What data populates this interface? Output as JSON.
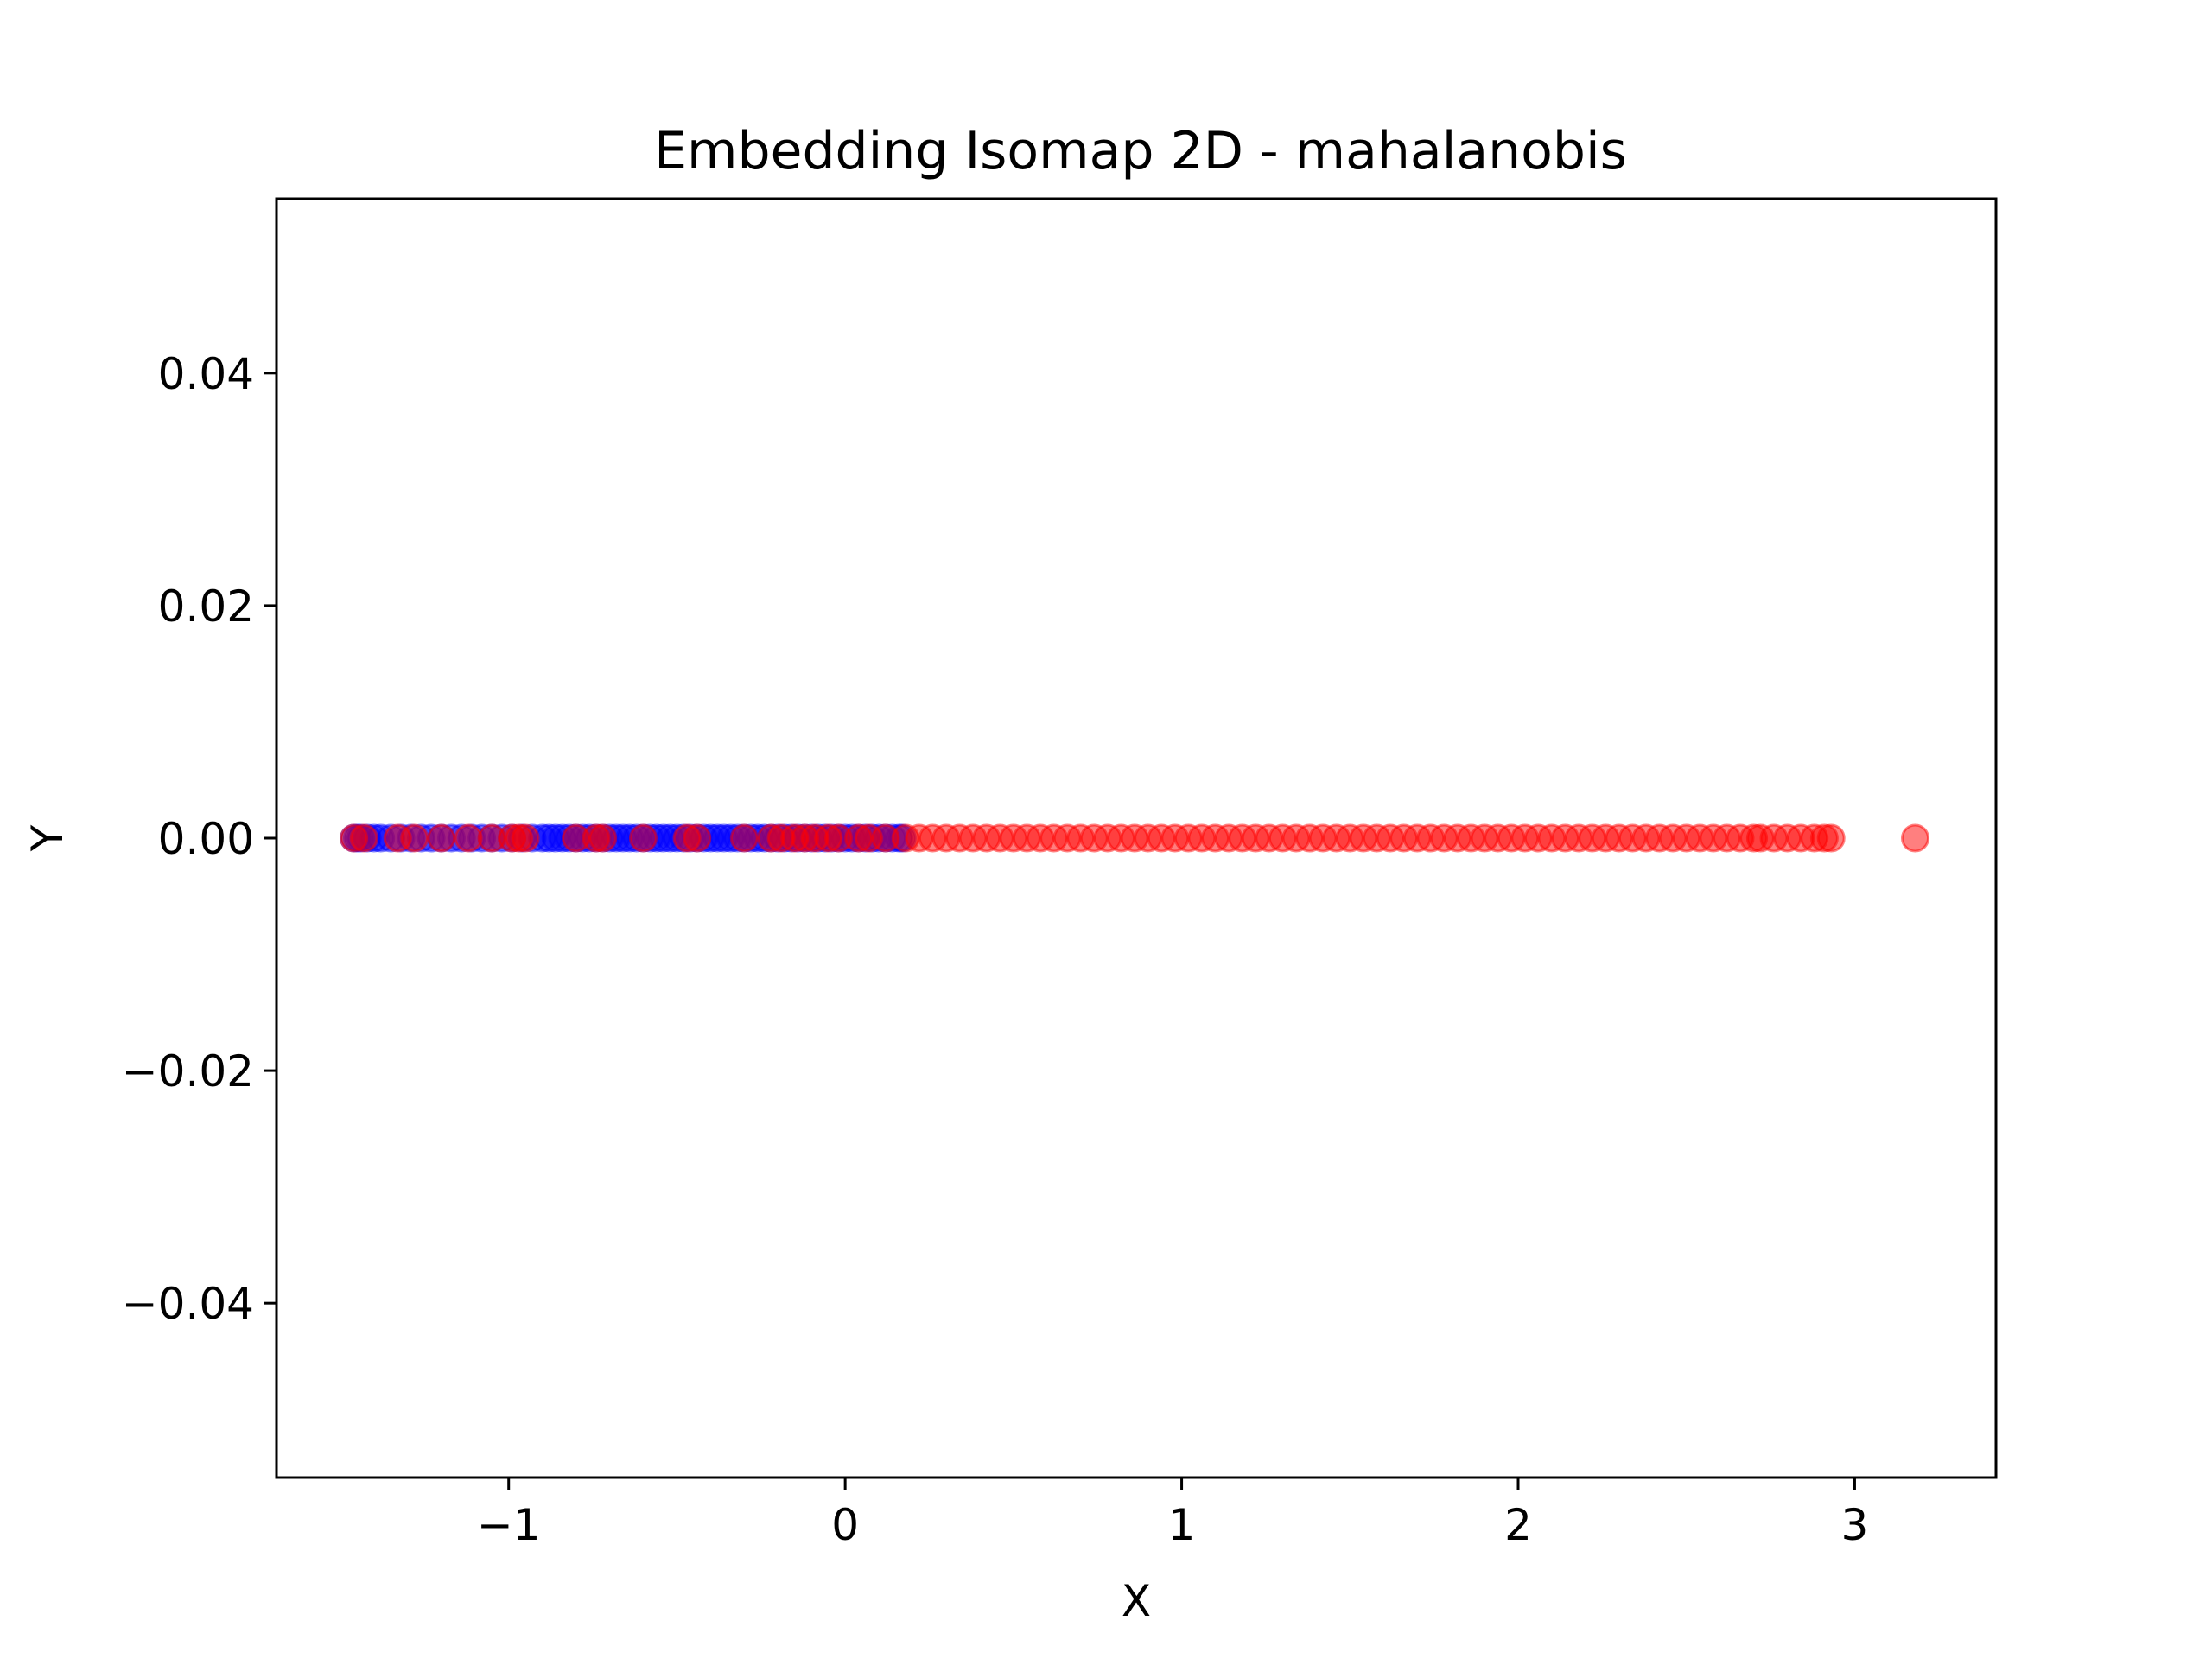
{
  "chart_data": {
    "type": "scatter",
    "title": "Embedding Isomap 2D - mahalanobis",
    "xlabel": "X",
    "ylabel": "Y",
    "xlim": [
      -1.69,
      3.42
    ],
    "ylim": [
      -0.055,
      0.055
    ],
    "xticks": [
      {
        "value": -1,
        "label": "−1"
      },
      {
        "value": 0,
        "label": "0"
      },
      {
        "value": 1,
        "label": "1"
      },
      {
        "value": 2,
        "label": "2"
      },
      {
        "value": 3,
        "label": "3"
      }
    ],
    "yticks": [
      {
        "value": 0.04,
        "label": "0.04"
      },
      {
        "value": 0.02,
        "label": "0.02"
      },
      {
        "value": 0.0,
        "label": "0.00"
      },
      {
        "value": -0.02,
        "label": "−0.02"
      },
      {
        "value": -0.04,
        "label": "−0.04"
      }
    ],
    "grid": false,
    "legend": false,
    "marker_alpha": 0.5,
    "series": [
      {
        "color": "#0000ff",
        "x": [
          -1.46,
          -1.45,
          -1.44,
          -1.42,
          -1.4,
          -1.38,
          -1.35,
          -1.32,
          -1.29,
          -1.26,
          -1.23,
          -1.2,
          -1.17,
          -1.14,
          -1.11,
          -1.08,
          -1.05,
          -1.02,
          -0.99,
          -0.96,
          -0.93,
          -0.9,
          -0.88,
          -0.86,
          -0.84,
          -0.82,
          -0.8,
          -0.78,
          -0.76,
          -0.74,
          -0.72,
          -0.7,
          -0.68,
          -0.66,
          -0.64,
          -0.62,
          -0.6,
          -0.58,
          -0.56,
          -0.54,
          -0.52,
          -0.5,
          -0.48,
          -0.46,
          -0.44,
          -0.42,
          -0.4,
          -0.38,
          -0.36,
          -0.34,
          -0.32,
          -0.3,
          -0.28,
          -0.26,
          -0.24,
          -0.22,
          -0.2,
          -0.18,
          -0.16,
          -0.14,
          -0.12,
          -0.1,
          -0.08,
          -0.06,
          -0.04,
          -0.02,
          0.0,
          0.02,
          0.04,
          0.06,
          0.08,
          0.1,
          0.12,
          0.14,
          0.16,
          0.17
        ],
        "y": [
          0,
          0,
          0,
          0,
          0,
          0,
          0,
          0,
          0,
          0,
          0,
          0,
          0,
          0,
          0,
          0,
          0,
          0,
          0,
          0,
          0,
          0,
          0,
          0,
          0,
          0,
          0,
          0,
          0,
          0,
          0,
          0,
          0,
          0,
          0,
          0,
          0,
          0,
          0,
          0,
          0,
          0,
          0,
          0,
          0,
          0,
          0,
          0,
          0,
          0,
          0,
          0,
          0,
          0,
          0,
          0,
          0,
          0,
          0,
          0,
          0,
          0,
          0,
          0,
          0,
          0,
          0,
          0,
          0,
          0,
          0,
          0,
          0,
          0,
          0,
          0
        ]
      },
      {
        "color": "#ff0000",
        "x": [
          -1.46,
          -1.43,
          -1.33,
          -1.28,
          -1.2,
          -1.12,
          -1.05,
          -0.99,
          -0.97,
          -0.95,
          -0.8,
          -0.74,
          -0.72,
          -0.6,
          -0.47,
          -0.44,
          -0.3,
          -0.22,
          -0.19,
          -0.15,
          -0.12,
          -0.09,
          -0.05,
          -0.02,
          0.04,
          0.07,
          0.12,
          0.18,
          0.22,
          0.26,
          0.3,
          0.34,
          0.38,
          0.42,
          0.46,
          0.5,
          0.54,
          0.58,
          0.62,
          0.66,
          0.7,
          0.74,
          0.78,
          0.82,
          0.86,
          0.9,
          0.94,
          0.98,
          1.02,
          1.06,
          1.1,
          1.14,
          1.18,
          1.22,
          1.26,
          1.3,
          1.34,
          1.38,
          1.42,
          1.46,
          1.5,
          1.54,
          1.58,
          1.62,
          1.66,
          1.7,
          1.74,
          1.78,
          1.82,
          1.86,
          1.9,
          1.94,
          1.98,
          2.02,
          2.06,
          2.1,
          2.14,
          2.18,
          2.22,
          2.26,
          2.3,
          2.34,
          2.38,
          2.42,
          2.46,
          2.5,
          2.54,
          2.58,
          2.62,
          2.66,
          2.7,
          2.72,
          2.76,
          2.8,
          2.84,
          2.88,
          2.91,
          2.93,
          3.18
        ],
        "y": [
          0,
          0,
          0,
          0,
          0,
          0,
          0,
          0,
          0,
          0,
          0,
          0,
          0,
          0,
          0,
          0,
          0,
          0,
          0,
          0,
          0,
          0,
          0,
          0,
          0,
          0,
          0,
          0,
          0,
          0,
          0,
          0,
          0,
          0,
          0,
          0,
          0,
          0,
          0,
          0,
          0,
          0,
          0,
          0,
          0,
          0,
          0,
          0,
          0,
          0,
          0,
          0,
          0,
          0,
          0,
          0,
          0,
          0,
          0,
          0,
          0,
          0,
          0,
          0,
          0,
          0,
          0,
          0,
          0,
          0,
          0,
          0,
          0,
          0,
          0,
          0,
          0,
          0,
          0,
          0,
          0,
          0,
          0,
          0,
          0,
          0,
          0,
          0,
          0,
          0,
          0,
          0,
          0,
          0,
          0,
          0,
          0,
          0,
          0
        ]
      }
    ]
  }
}
